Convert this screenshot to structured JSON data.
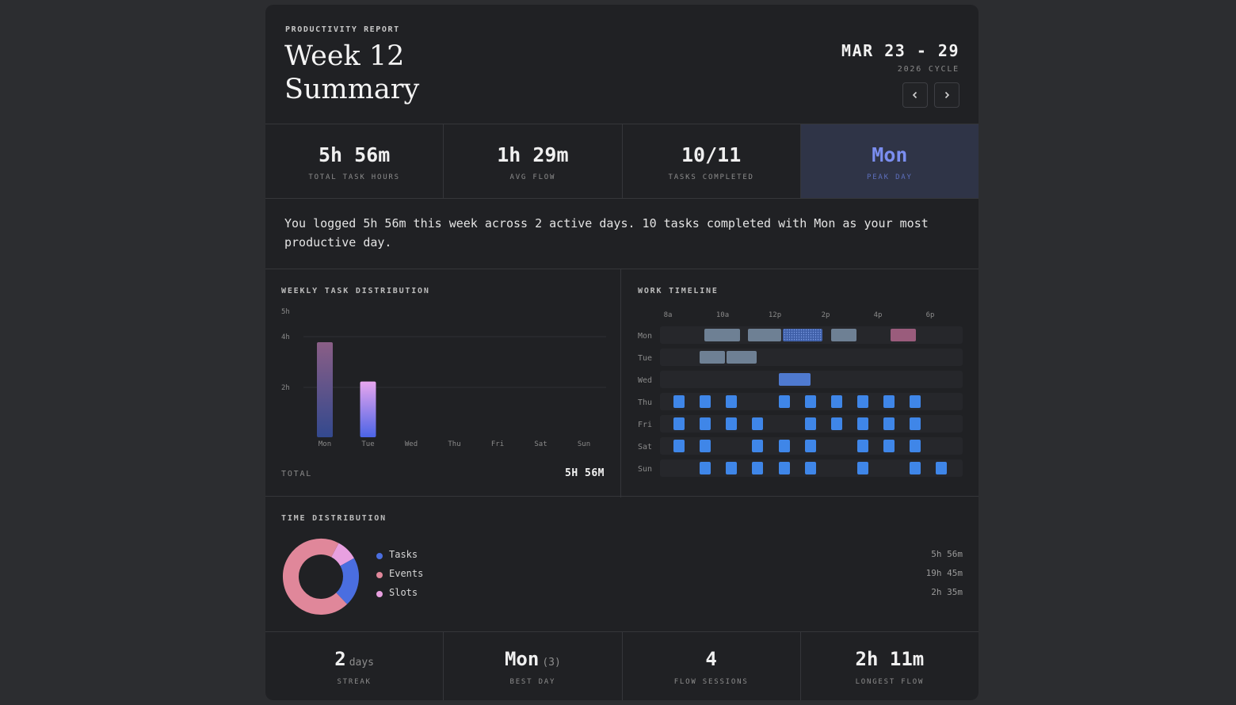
{
  "header": {
    "kicker": "PRODUCTIVITY REPORT",
    "title": "Week 12 Summary",
    "range": "MAR 23 - 29",
    "cycle": "2026 CYCLE"
  },
  "stats": [
    {
      "value": "5h 56m",
      "label": "TOTAL TASK HOURS"
    },
    {
      "value": "1h 29m",
      "label": "AVG FLOW"
    },
    {
      "value": "10/11",
      "label": "TASKS COMPLETED"
    },
    {
      "value": "Mon",
      "label": "PEAK DAY"
    }
  ],
  "summary": "You logged 5h 56m this week across 2 active days. 10 tasks completed with Mon as your most productive day.",
  "weekly": {
    "title": "WEEKLY TASK DISTRIBUTION",
    "total_label": "TOTAL",
    "total_value": "5H 56M"
  },
  "timeline": {
    "title": "WORK TIMELINE",
    "hour_labels": [
      "8a",
      "10a",
      "12p",
      "2p",
      "4p",
      "6p"
    ],
    "days": [
      "Mon",
      "Tue",
      "Wed",
      "Thu",
      "Fri",
      "Sat",
      "Sun"
    ]
  },
  "distribution": {
    "title": "TIME DISTRIBUTION",
    "items": [
      {
        "name": "Tasks",
        "value": "5h 56m",
        "color": "#4a6ee0"
      },
      {
        "name": "Events",
        "value": "19h 45m",
        "color": "#e0879a"
      },
      {
        "name": "Slots",
        "value": "2h 35m",
        "color": "#e8a0e0"
      }
    ]
  },
  "bottom": [
    {
      "value": "2",
      "unit": "days",
      "label": "STREAK"
    },
    {
      "value": "Mon",
      "unit": "(3)",
      "label": "BEST DAY"
    },
    {
      "value": "4",
      "unit": "",
      "label": "FLOW SESSIONS"
    },
    {
      "value": "2h 11m",
      "unit": "",
      "label": "LONGEST FLOW"
    }
  ],
  "chart_data": [
    {
      "type": "bar",
      "categories": [
        "Mon",
        "Tue",
        "Wed",
        "Thu",
        "Fri",
        "Sat",
        "Sun"
      ],
      "values": [
        3.75,
        2.2,
        0,
        0,
        0,
        0,
        0
      ],
      "y_tick_labels": [
        "5h",
        "4h",
        "2h"
      ],
      "ylim": [
        0,
        5
      ],
      "grid": true
    },
    {
      "type": "pie",
      "categories": [
        "Tasks",
        "Events",
        "Slots"
      ],
      "values": [
        356,
        1185,
        155
      ],
      "colors": [
        "#4a6ee0",
        "#e0879a",
        "#e8a0e0"
      ]
    }
  ]
}
